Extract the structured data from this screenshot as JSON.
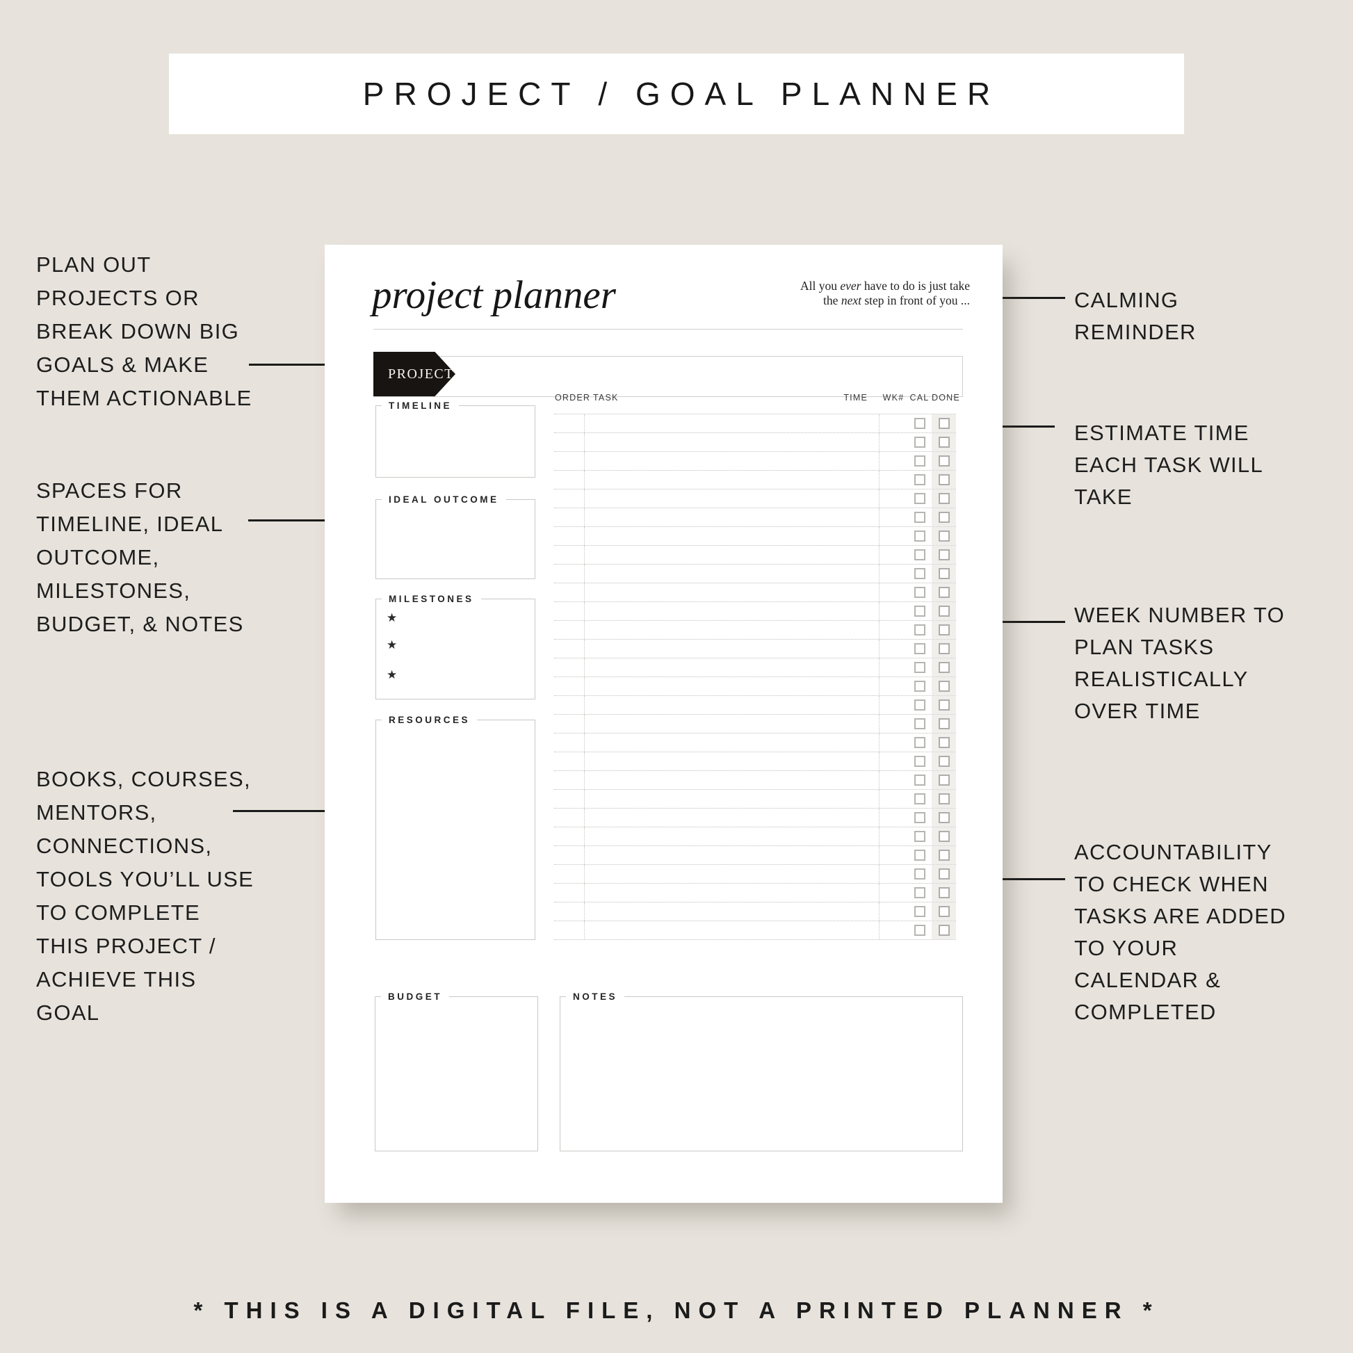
{
  "colors": {
    "background": "#e7e3dc",
    "page": "#ffffff",
    "ink": "#1b1b1b",
    "box_border": "#c9c8c4",
    "dotted_line": "#c1c0bc",
    "done_column_strip": "#f0efec",
    "ribbon": "#171411"
  },
  "banner": {
    "title": "PROJECT / GOAL PLANNER"
  },
  "planner": {
    "title": "project planner",
    "quote": {
      "l1_pre": "All you ",
      "l1_em": "ever",
      "l1_post": " have to do is just take",
      "l2_pre": "the ",
      "l2_em": "next",
      "l2_post": " step in front of you ..."
    },
    "ribbon_label": "PROJECT",
    "sections": {
      "timeline": "TIMELINE",
      "ideal_outcome": "IDEAL OUTCOME",
      "milestones": "MILESTONES",
      "resources": "RESOURCES",
      "budget": "BUDGET",
      "notes": "NOTES"
    },
    "milestone_marker": "★",
    "milestone_count": 3,
    "table": {
      "headers": [
        "ORDER",
        "TASK",
        "TIME",
        "WK#",
        "CAL",
        "DONE"
      ],
      "row_count": 28
    }
  },
  "annotations": {
    "left": [
      {
        "lines": [
          "PLAN OUT",
          "PROJECTS OR",
          "BREAK DOWN BIG",
          "GOALS & MAKE",
          "THEM ACTIONABLE"
        ]
      },
      {
        "lines": [
          "SPACES FOR",
          "TIMELINE, IDEAL",
          "OUTCOME,",
          "MILESTONES,",
          "BUDGET, & NOTES"
        ]
      },
      {
        "lines": [
          "BOOKS, COURSES,",
          "MENTORS,",
          "CONNECTIONS,",
          "TOOLS YOU’LL USE",
          "TO COMPLETE",
          "THIS PROJECT /",
          "ACHIEVE THIS",
          "GOAL"
        ]
      }
    ],
    "right": [
      {
        "lines": [
          "CALMING",
          "REMINDER"
        ]
      },
      {
        "lines": [
          "ESTIMATE TIME",
          "EACH TASK WILL",
          "TAKE"
        ]
      },
      {
        "lines": [
          "WEEK NUMBER TO",
          "PLAN TASKS",
          "REALISTICALLY",
          "OVER TIME"
        ]
      },
      {
        "lines": [
          "ACCOUNTABILITY",
          "TO CHECK WHEN",
          "TASKS ARE ADDED",
          "TO YOUR",
          "CALENDAR &",
          "COMPLETED"
        ]
      }
    ]
  },
  "footer": {
    "note": "* THIS IS A DIGITAL FILE, NOT A PRINTED PLANNER *"
  }
}
